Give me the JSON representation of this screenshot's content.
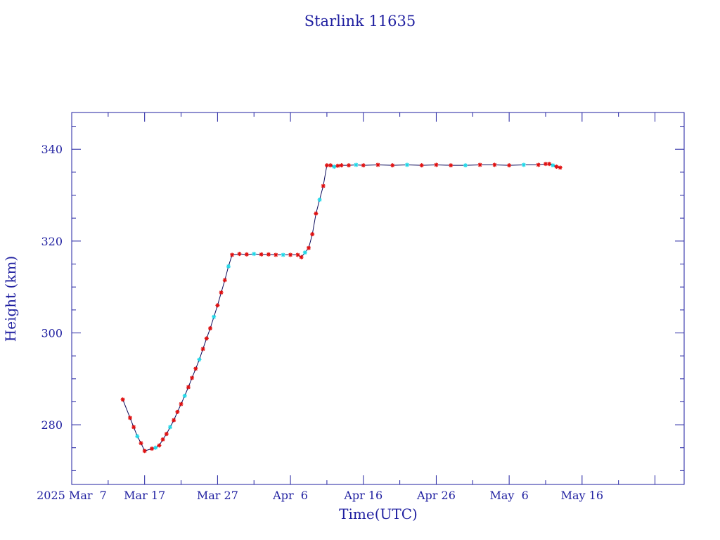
{
  "chart_data": {
    "type": "line",
    "title": "Starlink 11635",
    "xlabel": "Time(UTC)",
    "ylabel": "Height (km)",
    "x_ticks": [
      "2025 Mar  7",
      "Mar 17",
      "Mar 27",
      "Apr  6",
      "Apr 16",
      "Apr 26",
      "May  6",
      "May 16"
    ],
    "x_range_days": [
      -10,
      74
    ],
    "ylim": [
      267,
      348
    ],
    "y_ticks": [
      280,
      300,
      320,
      340
    ],
    "grid": false,
    "colors": {
      "frame": "#1f1fa0",
      "line": "#0a0a5a",
      "marker_primary": "#e01010",
      "marker_secondary": "#22d8e8"
    },
    "series": [
      {
        "x": [
          -3.0,
          -2.0,
          -1.5,
          -1.0,
          -0.5,
          0.0,
          1.0,
          1.5,
          2.0,
          2.5,
          3.0,
          3.5,
          4.0,
          4.5,
          5.0,
          5.5,
          6.0,
          6.5,
          7.0,
          7.5,
          8.0,
          8.5,
          9.0,
          9.5,
          10.0,
          10.5,
          11.0,
          11.5,
          12.0,
          13.0,
          14.0,
          15.0,
          16.0,
          17.0,
          18.0,
          19.0,
          20.0,
          21.0,
          21.5,
          22.0,
          22.5,
          23.0,
          23.5,
          24.0,
          24.5,
          25.0,
          25.5,
          26.0,
          26.5,
          27.0,
          28.0,
          29.0,
          30.0,
          32.0,
          34.0,
          36.0,
          38.0,
          40.0,
          42.0,
          44.0,
          46.0,
          48.0,
          50.0,
          52.0,
          54.0,
          55.0,
          55.5,
          56.0,
          56.5,
          57.0
        ],
        "y": [
          285.5,
          281.5,
          279.5,
          277.5,
          276.0,
          274.3,
          274.8,
          275.0,
          275.5,
          276.8,
          278.0,
          279.5,
          281.0,
          282.8,
          284.5,
          286.3,
          288.2,
          290.2,
          292.2,
          294.2,
          296.5,
          298.8,
          301.0,
          303.5,
          306.0,
          308.8,
          311.5,
          314.5,
          317.0,
          317.2,
          317.1,
          317.2,
          317.1,
          317.1,
          317.0,
          317.0,
          317.0,
          317.0,
          316.5,
          317.5,
          318.5,
          321.5,
          326.0,
          329.0,
          332.0,
          336.5,
          336.5,
          336.2,
          336.4,
          336.5,
          336.5,
          336.6,
          336.5,
          336.6,
          336.5,
          336.6,
          336.5,
          336.6,
          336.5,
          336.5,
          336.6,
          336.6,
          336.5,
          336.6,
          336.6,
          336.8,
          336.8,
          336.5,
          336.2,
          336.0
        ]
      }
    ]
  }
}
